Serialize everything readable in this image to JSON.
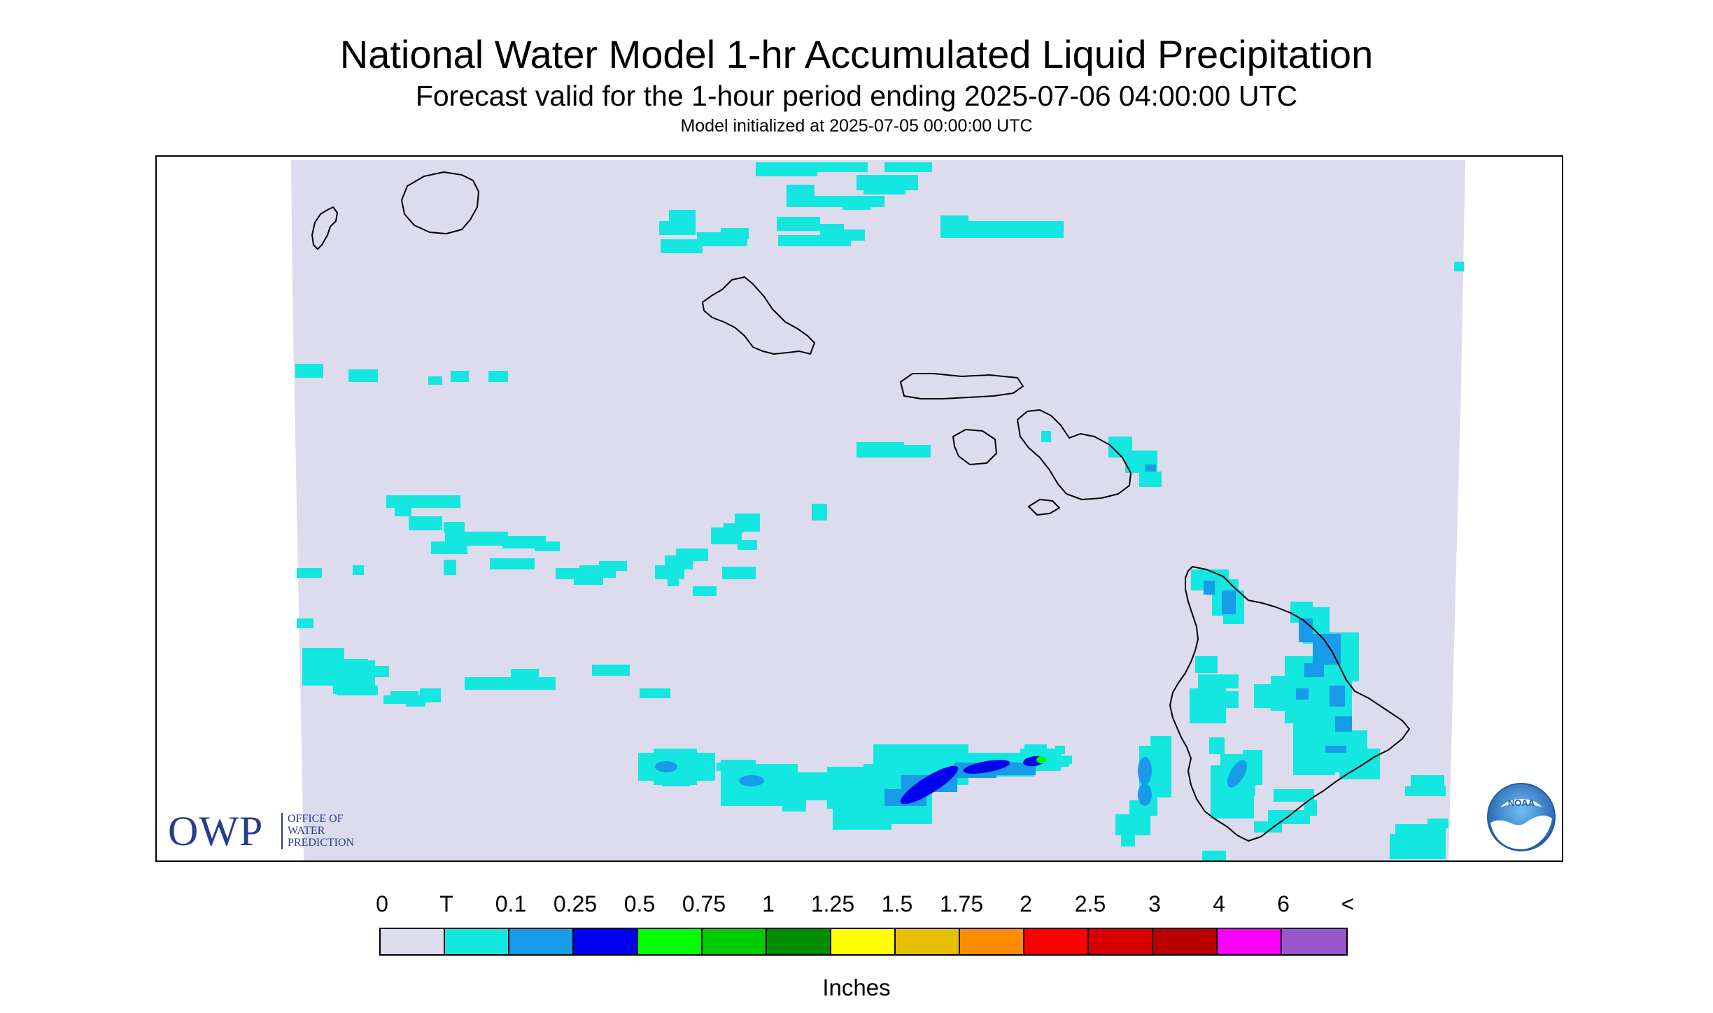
{
  "header": {
    "title": "National Water Model 1-hr Accumulated Liquid Precipitation",
    "subtitle": "Forecast valid for the 1-hour period ending 2025-07-06 04:00:00 UTC",
    "init": "Model initialized at 2025-07-05 00:00:00 UTC"
  },
  "logos": {
    "owp": {
      "letters": "OWP",
      "line1": "OFFICE OF",
      "line2": "WATER",
      "line3": "PREDICTION",
      "color": "#233f8a"
    },
    "noaa": {
      "text": "NOAA",
      "colors": [
        "#1f5ba8",
        "#4fa3e3",
        "#ffffff"
      ]
    }
  },
  "map": {
    "background_color": "#dcdcee",
    "outside_color": "#ffffff",
    "coastline_color": "#000000",
    "islands": [
      "Niihau",
      "Kauai",
      "Oahu",
      "Molokai",
      "Lanai",
      "Maui",
      "Kahoolawe",
      "Hawaii"
    ]
  },
  "legend": {
    "labels": [
      "0",
      "T",
      "0.1",
      "0.25",
      "0.5",
      "0.75",
      "1",
      "1.25",
      "1.5",
      "1.75",
      "2",
      "2.5",
      "3",
      "4",
      "6",
      "<"
    ],
    "colors": [
      "#dcdcee",
      "#14e6e0",
      "#189be8",
      "#0000f0",
      "#00ff00",
      "#00cd00",
      "#008c00",
      "#ffff00",
      "#e6c000",
      "#ff8c00",
      "#ff0000",
      "#d70000",
      "#b90000",
      "#ff00ff",
      "#9955cc"
    ],
    "units": "Inches"
  }
}
